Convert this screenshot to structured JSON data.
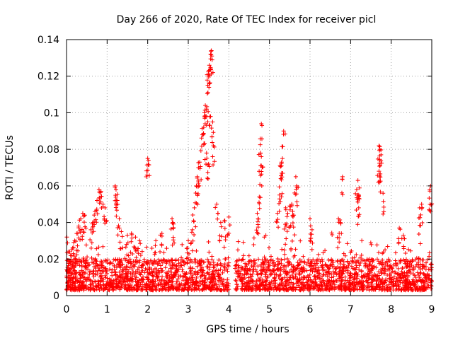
{
  "chart_data": {
    "type": "scatter",
    "title": "Day 266 of 2020, Rate Of TEC Index for receiver picl",
    "xlabel": "GPS time / hours",
    "ylabel": "ROTI / TECUs",
    "xlim": [
      0,
      9
    ],
    "ylim": [
      0,
      0.14
    ],
    "xticks": [
      0,
      1,
      2,
      3,
      4,
      5,
      6,
      7,
      8,
      9
    ],
    "yticks": [
      0,
      0.02,
      0.04,
      0.06,
      0.08,
      0.1,
      0.12,
      0.14
    ],
    "ytick_labels": [
      "0",
      "0.02",
      "0.04",
      "0.06",
      "0.08",
      "0.1",
      "0.12",
      "0.14"
    ],
    "grid": true,
    "marker": "+",
    "series": [
      {
        "name": "ROTI",
        "color": "#ff0000",
        "baseline_band": [
          0.003,
          0.02
        ],
        "gap_hours": [
          4.0,
          4.15
        ],
        "points": [
          [
            0.05,
            0.024
          ],
          [
            0.1,
            0.022
          ],
          [
            0.15,
            0.026
          ],
          [
            0.2,
            0.03
          ],
          [
            0.25,
            0.034
          ],
          [
            0.3,
            0.038
          ],
          [
            0.35,
            0.042
          ],
          [
            0.4,
            0.045
          ],
          [
            0.45,
            0.044
          ],
          [
            0.6,
            0.036
          ],
          [
            0.65,
            0.04
          ],
          [
            0.7,
            0.046
          ],
          [
            0.75,
            0.052
          ],
          [
            0.8,
            0.058
          ],
          [
            0.85,
            0.057
          ],
          [
            0.9,
            0.05
          ],
          [
            0.95,
            0.048
          ],
          [
            1.2,
            0.06
          ],
          [
            1.22,
            0.058
          ],
          [
            1.25,
            0.052
          ],
          [
            1.3,
            0.042
          ],
          [
            1.35,
            0.035
          ],
          [
            1.5,
            0.033
          ],
          [
            1.6,
            0.034
          ],
          [
            1.7,
            0.032
          ],
          [
            1.8,
            0.03
          ],
          [
            2.0,
            0.075
          ],
          [
            2.02,
            0.074
          ],
          [
            2.2,
            0.03
          ],
          [
            2.35,
            0.034
          ],
          [
            2.6,
            0.042
          ],
          [
            2.62,
            0.04
          ],
          [
            3.0,
            0.03
          ],
          [
            3.1,
            0.036
          ],
          [
            3.15,
            0.048
          ],
          [
            3.2,
            0.06
          ],
          [
            3.22,
            0.065
          ],
          [
            3.25,
            0.07
          ],
          [
            3.28,
            0.073
          ],
          [
            3.35,
            0.088
          ],
          [
            3.38,
            0.092
          ],
          [
            3.4,
            0.1
          ],
          [
            3.42,
            0.104
          ],
          [
            3.45,
            0.102
          ],
          [
            3.48,
            0.115
          ],
          [
            3.5,
            0.121
          ],
          [
            3.52,
            0.126
          ],
          [
            3.55,
            0.132
          ],
          [
            3.57,
            0.134
          ],
          [
            3.58,
            0.131
          ],
          [
            3.55,
            0.098
          ],
          [
            3.6,
            0.095
          ],
          [
            3.62,
            0.082
          ],
          [
            3.45,
            0.078
          ],
          [
            3.5,
            0.072
          ],
          [
            3.7,
            0.05
          ],
          [
            3.8,
            0.04
          ],
          [
            3.9,
            0.041
          ],
          [
            4.0,
            0.043
          ],
          [
            4.7,
            0.045
          ],
          [
            4.72,
            0.042
          ],
          [
            4.75,
            0.054
          ],
          [
            4.78,
            0.078
          ],
          [
            4.8,
            0.076
          ],
          [
            4.8,
            0.071
          ],
          [
            4.8,
            0.094
          ],
          [
            5.2,
            0.045
          ],
          [
            5.25,
            0.055
          ],
          [
            5.28,
            0.064
          ],
          [
            5.3,
            0.073
          ],
          [
            5.32,
            0.075
          ],
          [
            5.35,
            0.09
          ],
          [
            5.4,
            0.048
          ],
          [
            5.45,
            0.045
          ],
          [
            5.5,
            0.049
          ],
          [
            5.55,
            0.05
          ],
          [
            5.6,
            0.044
          ],
          [
            5.65,
            0.065
          ],
          [
            5.67,
            0.06
          ],
          [
            6.0,
            0.042
          ],
          [
            6.05,
            0.036
          ],
          [
            6.7,
            0.042
          ],
          [
            6.75,
            0.04
          ],
          [
            6.8,
            0.065
          ],
          [
            7.15,
            0.058
          ],
          [
            7.18,
            0.063
          ],
          [
            7.2,
            0.055
          ],
          [
            7.2,
            0.048
          ],
          [
            7.7,
            0.082
          ],
          [
            7.72,
            0.08
          ],
          [
            7.75,
            0.077
          ],
          [
            7.7,
            0.068
          ],
          [
            7.72,
            0.065
          ],
          [
            7.8,
            0.056
          ],
          [
            8.2,
            0.037
          ],
          [
            8.3,
            0.033
          ],
          [
            8.7,
            0.048
          ],
          [
            8.75,
            0.05
          ],
          [
            8.95,
            0.058
          ],
          [
            8.97,
            0.06
          ]
        ]
      }
    ]
  }
}
